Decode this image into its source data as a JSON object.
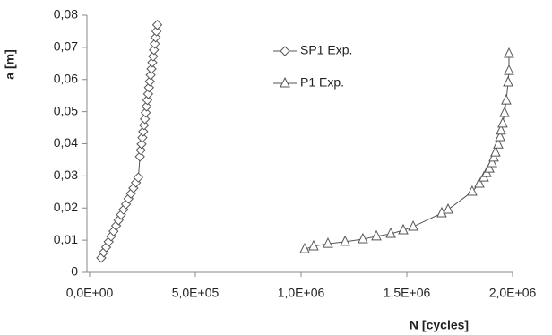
{
  "chart_data": {
    "type": "scatter",
    "x_label": "N [cycles]",
    "y_label": "a [m]",
    "xlim": [
      0,
      2000000
    ],
    "xticks": [
      {
        "value": 0,
        "label": "0,0E+00"
      },
      {
        "value": 500000,
        "label": "5,0E+05"
      },
      {
        "value": 1000000,
        "label": "1,0E+06"
      },
      {
        "value": 1500000,
        "label": "1,5E+06"
      },
      {
        "value": 2000000,
        "label": "2,0E+06"
      }
    ],
    "ylim": [
      0,
      0.08
    ],
    "yticks": [
      0,
      {
        "value": 0.01,
        "label": "0,01"
      },
      {
        "value": 0.02,
        "label": "0,02"
      },
      {
        "value": 0.03,
        "label": "0,03"
      },
      {
        "value": 0.04,
        "label": "0,04"
      },
      {
        "value": 0.05,
        "label": "0,05"
      },
      {
        "value": 0.06,
        "label": "0,06"
      },
      {
        "value": 0.07,
        "label": "0,07"
      },
      {
        "value": 0.08,
        "label": "0,08"
      }
    ],
    "grid": false,
    "legend": "top",
    "series": [
      {
        "name": "SP1 Exp.",
        "color": "#555555",
        "marker": "diamond",
        "x": [
          55000,
          66700,
          78400,
          90100,
          101800,
          113500,
          125200,
          136900,
          148600,
          160300,
          172000,
          183700,
          195400,
          207100,
          218800,
          230500,
          238000,
          241900,
          245800,
          249700,
          253600,
          257500,
          261400,
          265300,
          269200,
          273100,
          277000,
          280900,
          284800,
          288700,
          292600,
          296500,
          300400,
          304300,
          308200,
          312100,
          316000,
          320000
        ],
        "values": [
          0.0045,
          0.0062,
          0.0078,
          0.0095,
          0.0112,
          0.0128,
          0.0145,
          0.0162,
          0.0179,
          0.0195,
          0.0212,
          0.0229,
          0.0245,
          0.0262,
          0.0279,
          0.0295,
          0.036,
          0.038,
          0.0399,
          0.0419,
          0.0438,
          0.0458,
          0.0477,
          0.0497,
          0.0516,
          0.0536,
          0.0555,
          0.0575,
          0.0594,
          0.0614,
          0.0633,
          0.0653,
          0.0672,
          0.0692,
          0.0711,
          0.0731,
          0.075,
          0.077
        ]
      },
      {
        "name": "P1 Exp.",
        "color": "#555555",
        "marker": "triangle",
        "x": [
          1017000,
          1059000,
          1127000,
          1208000,
          1292000,
          1356000,
          1424000,
          1483000,
          1530000,
          1665000,
          1695000,
          1809000,
          1843000,
          1864000,
          1877000,
          1890000,
          1903000,
          1911000,
          1919000,
          1932000,
          1941000,
          1945000,
          1953000,
          1962000,
          1970000,
          1979000,
          1983000,
          1983000
        ],
        "values": [
          0.0072,
          0.0081,
          0.0089,
          0.0095,
          0.0103,
          0.0112,
          0.012,
          0.0131,
          0.0142,
          0.0184,
          0.0195,
          0.0251,
          0.0276,
          0.0295,
          0.0309,
          0.0323,
          0.034,
          0.0357,
          0.0373,
          0.0398,
          0.0421,
          0.0441,
          0.0463,
          0.0496,
          0.0535,
          0.0591,
          0.0627,
          0.068
        ]
      }
    ]
  }
}
